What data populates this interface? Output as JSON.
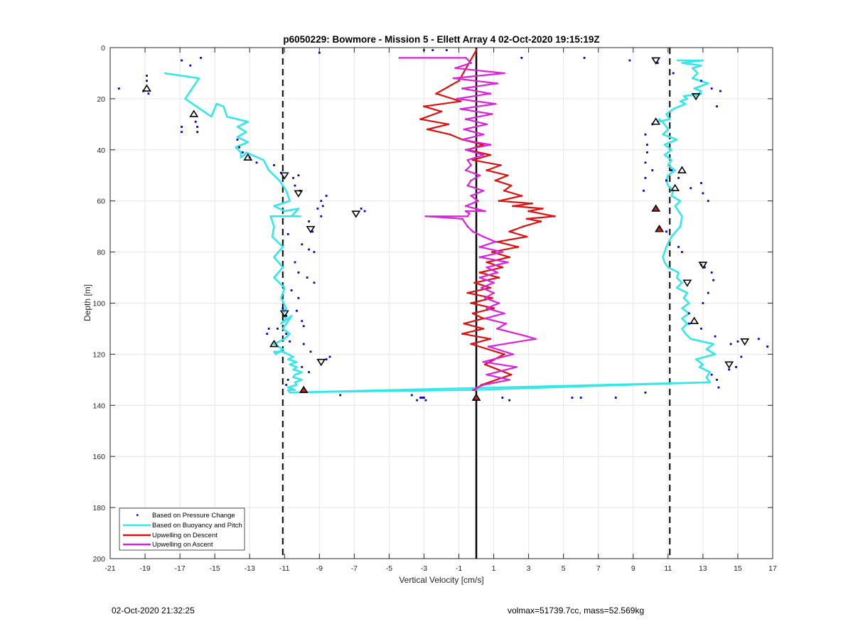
{
  "chart_data": {
    "type": "scatter",
    "title": "p6050229: Bowmore - Mission 5 - Ellett Array 4 02-Oct-2020 19:15:19Z",
    "xlabel": "Vertical Velocity [cm/s]",
    "ylabel": "Depth [m]",
    "xlim": [
      -21,
      17
    ],
    "ylim": [
      0,
      200
    ],
    "y_reversed": true,
    "grid": true,
    "legend_position": "bottom-left",
    "xticks": [
      -21,
      -19,
      -17,
      -15,
      -13,
      -11,
      -9,
      -7,
      -5,
      -3,
      -1,
      1,
      3,
      5,
      7,
      9,
      11,
      13,
      15,
      17
    ],
    "yticks": [
      0,
      20,
      40,
      60,
      80,
      100,
      120,
      140,
      160,
      180,
      200
    ],
    "reference_lines": [
      {
        "x": 0,
        "style": "solid",
        "color": "#000000"
      },
      {
        "x": -11.1,
        "style": "dashed",
        "color": "#000000"
      },
      {
        "x": 11.1,
        "style": "dashed",
        "color": "#000000"
      }
    ],
    "series": [
      {
        "name": "Based on Pressure Change",
        "kind": "points",
        "color": "#0000cc",
        "x": [
          -15.8,
          -16.9,
          -16.4,
          -18.9,
          -18.9,
          -18.8,
          -19.1,
          -20.5,
          -16.1,
          -16.0,
          -16.9,
          -16.9,
          -16.0,
          -13.7,
          -13.6,
          -13.4,
          -13.0,
          -12.6,
          -11.6,
          -11.2,
          -10.5,
          -10.2,
          -10.4,
          -10.1,
          -9.1,
          -8.6,
          -8.9,
          -8.8,
          -8.9,
          -6.4,
          -6.6,
          -9.6,
          -9.4,
          -10.8,
          -10.0,
          -9.6,
          -9.3,
          -10.4,
          -10.2,
          -9.7,
          -9.3,
          -10.6,
          -10.2,
          -11.1,
          -10.9,
          -10.0,
          -10.3,
          -9.9,
          -11.9,
          -12.0,
          -11.4,
          -10.9,
          -10.7,
          -9.9,
          -9.5,
          -8.4,
          -8.6,
          -10.0,
          -9.6,
          -10.8,
          -10.9,
          -7.8,
          -3.0,
          -3.2,
          -3.4,
          -2.9,
          -3.7,
          1.5,
          -9.0,
          -3.0,
          -2.5,
          -1.7,
          2.6,
          6.2,
          8.8,
          10.4,
          11.3,
          12.9,
          13.5,
          14.0,
          13.8,
          10.1,
          9.7,
          9.8,
          9.8,
          9.7,
          10.1,
          9.7,
          9.6,
          10.9,
          11.2,
          11.6,
          12.3,
          12.9,
          13.0,
          13.3,
          10.9,
          11.6,
          11.8,
          12.9,
          13.1,
          13.5,
          13.6,
          13.3,
          13.0,
          12.2,
          12.2,
          12.9,
          13.7,
          14.6,
          15.0,
          16.2,
          16.7,
          15.2,
          14.9,
          14.5,
          13.5,
          13.8,
          13.9,
          9.7,
          8.0,
          5.5,
          6.0,
          1.9,
          -3.1
        ],
        "y": [
          4,
          5,
          7,
          11,
          13,
          18,
          17,
          16,
          29,
          31,
          31,
          33,
          33,
          36,
          39,
          41,
          43,
          45,
          46,
          49,
          51,
          50,
          54,
          56,
          63,
          58,
          60,
          62,
          66,
          64,
          63,
          68,
          72,
          73,
          77,
          79,
          80,
          84,
          88,
          90,
          92,
          95,
          98,
          102,
          105,
          107,
          103,
          109,
          110,
          112,
          110,
          112,
          115,
          116,
          119,
          121,
          122,
          125,
          127,
          130,
          132,
          136,
          137,
          137,
          138,
          138,
          136,
          137,
          2,
          1,
          1,
          1,
          4,
          4,
          5,
          6,
          10,
          13,
          16,
          17,
          23,
          30,
          34,
          38,
          41,
          45,
          48,
          51,
          56,
          52,
          48,
          51,
          55,
          53,
          57,
          60,
          72,
          78,
          80,
          85,
          86,
          88,
          91,
          96,
          100,
          104,
          108,
          110,
          113,
          116,
          115,
          114,
          117,
          121,
          125,
          126,
          128,
          130,
          133,
          135,
          137,
          137,
          137,
          138,
          137
        ],
        "triangles_down": [
          [
            10.3,
            5
          ],
          [
            12.6,
            19
          ],
          [
            -11.0,
            50
          ],
          [
            -10.2,
            57
          ],
          [
            -6.9,
            65
          ],
          [
            -9.5,
            71
          ],
          [
            13.0,
            85
          ],
          [
            12.1,
            92
          ],
          [
            -11.0,
            104
          ],
          [
            15.4,
            115
          ],
          [
            14.5,
            124
          ],
          [
            -8.9,
            123
          ]
        ],
        "triangles_up": [
          [
            -18.9,
            16
          ],
          [
            -16.2,
            26
          ],
          [
            10.3,
            29
          ],
          [
            -13.1,
            43
          ],
          [
            11.8,
            48
          ],
          [
            11.4,
            55
          ],
          [
            10.5,
            71
          ],
          [
            12.5,
            107
          ],
          [
            -11.6,
            116
          ]
        ],
        "triangles_up_filled": [
          [
            10.3,
            63
          ],
          [
            10.5,
            71
          ],
          [
            -9.9,
            134
          ],
          [
            0,
            137
          ]
        ]
      },
      {
        "name": "Based on Buoyancy and Pitch",
        "kind": "line",
        "color": "#33e8e8",
        "x": [
          -17.9,
          -15.9,
          -16.7,
          -15.2,
          -14.9,
          -14.5,
          -14.3,
          -13.1,
          -13.7,
          -13.2,
          -13.7,
          -13.1,
          -13.8,
          -13.5,
          -13.5,
          -13.3,
          -13.2,
          -12.2,
          -11.9,
          -11.3,
          -10.9,
          -10.7,
          -11.6,
          -11.0,
          -10.2,
          -10.6,
          -10.1,
          -11.8,
          -11.6,
          -11.7,
          -11.1,
          -11.6,
          -11.1,
          -11.6,
          -11.0,
          -11.2,
          -10.9,
          -11.1,
          -10.9,
          -11.2,
          -10.6,
          -11.1,
          -10.7,
          -11.0,
          -11.6,
          -11.1,
          -11.5,
          -11.6,
          -11.1,
          -10.8,
          -10.5,
          -10.8,
          -10.3,
          -10.7,
          -10.3,
          -10.5,
          -10.0,
          -10.4,
          -10.5,
          -10.0,
          -10.4,
          -10.3,
          -10.8,
          -10.4,
          -10.8,
          -10.7,
          13.4,
          13.2,
          13.4,
          12.8,
          13.0,
          12.6,
          13.7,
          13.2,
          13.6,
          12.3,
          12.0,
          11.8,
          12.1,
          11.8,
          12.2,
          11.8,
          12.2,
          11.9,
          12.1,
          11.5,
          11.8,
          11.5,
          11.6,
          11.0,
          10.8,
          10.7,
          10.9,
          11.2,
          11.7,
          11.8,
          11.4,
          11.7,
          11.2,
          11.3,
          11.0,
          10.9,
          11.0,
          11.4,
          11.0,
          11.2,
          10.8,
          11.2,
          10.8,
          11.5,
          10.7,
          11.0,
          10.8,
          10.5,
          10.4,
          11.1,
          10.9,
          11.3,
          12.0,
          11.7,
          12.1,
          11.9,
          12.9,
          12.6,
          12.9,
          12.5,
          13.3,
          12.4,
          12.7,
          12.4,
          12.9,
          11.8,
          13.0,
          11.8,
          11.5
        ],
        "y": [
          10,
          12,
          20,
          27,
          22,
          23,
          27,
          29,
          31,
          33,
          35,
          37,
          39,
          41,
          43,
          42,
          41,
          44,
          48,
          52,
          56,
          60,
          62,
          64,
          63,
          66,
          66,
          66,
          70,
          74,
          78,
          82,
          86,
          90,
          94,
          98,
          102,
          104,
          106,
          108,
          105,
          110,
          112,
          114,
          116,
          118,
          120,
          119,
          119,
          120,
          121,
          122,
          123,
          124,
          125,
          126,
          127,
          128,
          129,
          130,
          131,
          132,
          133,
          134,
          134,
          135,
          131,
          129,
          127,
          125,
          124,
          122,
          120,
          118,
          116,
          114,
          112,
          110,
          108,
          106,
          104,
          102,
          100,
          98,
          96,
          94,
          92,
          90,
          88,
          86,
          84,
          82,
          78,
          74,
          70,
          66,
          62,
          60,
          58,
          56,
          54,
          52,
          50,
          48,
          46,
          44,
          42,
          40,
          38,
          36,
          34,
          32,
          30,
          28,
          29,
          28,
          26,
          24,
          22,
          21,
          20,
          19,
          18,
          19,
          17,
          16,
          14,
          12,
          10,
          8,
          7,
          6,
          5,
          5,
          5
        ],
        "crossing": [
          [
            -10.7,
            135
          ],
          [
            0,
            134
          ],
          [
            13.4,
            131
          ]
        ]
      },
      {
        "name": "Upwelling on Descent",
        "kind": "line",
        "color": "#dd1111",
        "x": [
          0.0,
          -1.0,
          -2.3,
          -0.9,
          -3.0,
          -2.0,
          -3.2,
          -1.6,
          -2.8,
          -1.5,
          -0.8,
          0.4,
          -0.5,
          0.8,
          -0.2,
          1.4,
          0.6,
          1.8,
          1.1,
          2.0,
          1.6,
          2.6,
          1.3,
          3.2,
          2.1,
          3.8,
          3.0,
          4.5,
          2.9,
          3.7,
          2.7,
          1.9,
          2.9,
          1.2,
          2.4,
          0.9,
          1.9,
          0.6,
          1.5,
          0.2,
          1.3,
          -0.1,
          0.8,
          -0.5,
          0.9,
          -0.3,
          1.0,
          -0.2,
          0.4,
          -0.7,
          0.4,
          -0.8,
          0.8,
          -0.3,
          1.6,
          0.5,
          2.0,
          0.3,
          -0.1
        ],
        "y": [
          1,
          13,
          18,
          21,
          23,
          25,
          28,
          30,
          32,
          34,
          36,
          38,
          40,
          42,
          44,
          46,
          48,
          50,
          52,
          54,
          56,
          58,
          60,
          61,
          62,
          63,
          64,
          66,
          67,
          68,
          70,
          72,
          74,
          76,
          78,
          80,
          82,
          84,
          86,
          88,
          90,
          92,
          94,
          96,
          98,
          100,
          102,
          104,
          106,
          108,
          110,
          112,
          114,
          116,
          120,
          124,
          128,
          132,
          134
        ]
      },
      {
        "name": "Upwelling on Ascent",
        "kind": "line",
        "color": "#dd22dd",
        "x": [
          -4.4,
          -0.6,
          -0.3,
          -1.2,
          1.6,
          -1.3,
          1.2,
          -0.8,
          0.8,
          -1.1,
          1.1,
          -0.9,
          0.9,
          -0.6,
          0.6,
          -0.7,
          0.4,
          -0.8,
          0.8,
          -0.6,
          0.4,
          -0.5,
          -0.3,
          -0.6,
          0.2,
          -0.3,
          -0.5,
          0.4,
          -0.3,
          0.1,
          -0.6,
          0.5,
          -0.6,
          -0.4,
          -0.5,
          -2.9,
          -0.8,
          -0.5,
          -0.2,
          0.4,
          1.1,
          0.2,
          1.5,
          0.2,
          1.8,
          0.6,
          1.2,
          0.2,
          1.0,
          0.3,
          1.0,
          0.5,
          1.3,
          0.6,
          1.6,
          0.5,
          1.7,
          1.2,
          2.9,
          3.4,
          0.7,
          2.1,
          0.4,
          2.3,
          0.6,
          1.9,
          0.4,
          -0.2
        ],
        "y": [
          4,
          4,
          6,
          8,
          10,
          12,
          14,
          16,
          18,
          20,
          22,
          24,
          26,
          28,
          30,
          32,
          34,
          36,
          38,
          40,
          42,
          44,
          46,
          48,
          50,
          52,
          54,
          56,
          58,
          60,
          62,
          64,
          64,
          65,
          66,
          66,
          67,
          70,
          72,
          74,
          76,
          78,
          80,
          82,
          84,
          86,
          88,
          90,
          92,
          94,
          96,
          98,
          100,
          102,
          104,
          106,
          108,
          110,
          113,
          114,
          117,
          120,
          123,
          125,
          128,
          130,
          132,
          134
        ]
      }
    ]
  },
  "footer": {
    "timestamp": "02-Oct-2020 21:32:25",
    "info": "volmax=51739.7cc, mass=52.569kg"
  }
}
